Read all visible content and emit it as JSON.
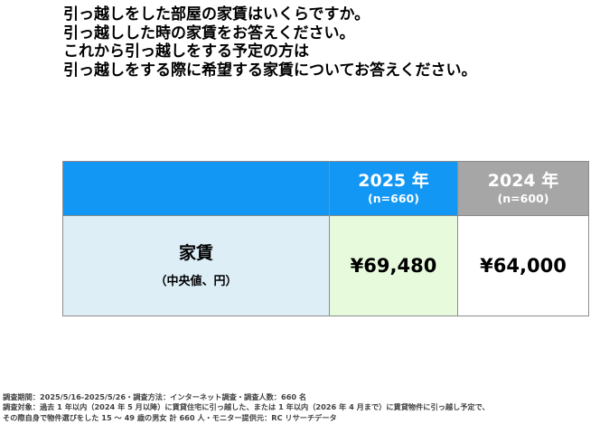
{
  "question": {
    "lines": [
      "引っ越しをした部屋の家賃はいくらですか。",
      "引っ越しした時の家賃をお答えください。",
      "これから引っ越しをする予定の方は",
      "引っ越しをする際に希望する家賃についてお答えください。"
    ]
  },
  "table": {
    "columns": [
      {
        "year": "2025 年",
        "n": "(n=660)",
        "color": "#1297f5"
      },
      {
        "year": "2024 年",
        "n": "(n=600)",
        "color": "#a6a6a6"
      }
    ],
    "row": {
      "label": "家賃",
      "sublabel": "（中央値、円）",
      "values": [
        "¥69,480",
        "¥64,000"
      ]
    }
  },
  "footnote": {
    "lines": [
      "調査期間：2025/5/16-2025/5/26・調査方法：インターネット調査・調査人数：660 名",
      "調査対象：過去 1 年以内（2024 年 5 月以降）に賃貸住宅に引っ越した、または 1 年以内（2026 年 4 月まで）に賃貸物件に引っ越し予定で、",
      "その際自身で物件選びをした 15 ～ 49 歳の男女 計 660 人・モニター提供元：RC リサーチデータ"
    ]
  }
}
